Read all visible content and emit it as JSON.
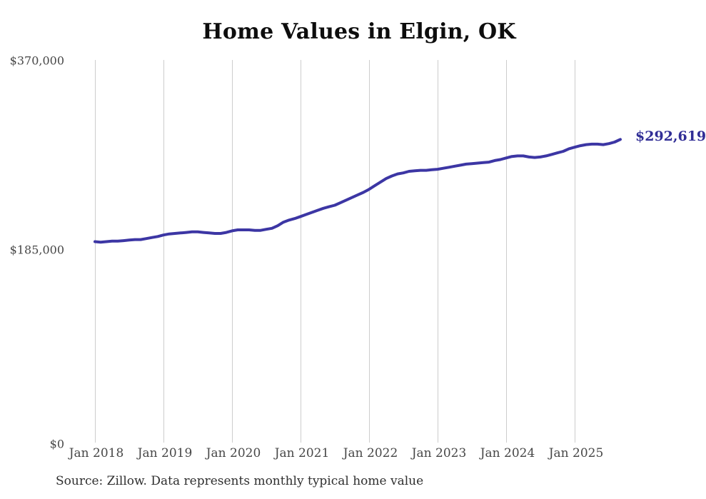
{
  "title": "Home Values in Elgin, OK",
  "source_note": "Source: Zillow. Data represents monthly typical home value",
  "colors": {
    "background": "#ffffff",
    "line": "#3c36a4",
    "end_label": "#312e96",
    "grid": "#cdcdcd",
    "tick_text": "#474747",
    "title_text": "#0d0d0d",
    "source_text": "#2f2f2f"
  },
  "chart_data": {
    "type": "line",
    "title": "Home Values in Elgin, OK",
    "xlabel": "",
    "ylabel": "",
    "ylim": [
      0,
      370000
    ],
    "grid": "vertical-only",
    "legend": "none",
    "y_tick_labels": [
      "$370,000",
      "$185,000",
      "$0"
    ],
    "y_tick_values": [
      370000,
      185000,
      0
    ],
    "x_tick_labels": [
      "Jan 2018",
      "Jan 2019",
      "Jan 2020",
      "Jan 2021",
      "Jan 2022",
      "Jan 2023",
      "Jan 2024",
      "Jan 2025"
    ],
    "end_annotation": "$292,619",
    "series": [
      {
        "name": "Monthly typical home value",
        "x": [
          "2018-01",
          "2018-02",
          "2018-03",
          "2018-04",
          "2018-05",
          "2018-06",
          "2018-07",
          "2018-08",
          "2018-09",
          "2018-10",
          "2018-11",
          "2018-12",
          "2019-01",
          "2019-02",
          "2019-03",
          "2019-04",
          "2019-05",
          "2019-06",
          "2019-07",
          "2019-08",
          "2019-09",
          "2019-10",
          "2019-11",
          "2019-12",
          "2020-01",
          "2020-02",
          "2020-03",
          "2020-04",
          "2020-05",
          "2020-06",
          "2020-07",
          "2020-08",
          "2020-09",
          "2020-10",
          "2020-11",
          "2020-12",
          "2021-01",
          "2021-02",
          "2021-03",
          "2021-04",
          "2021-05",
          "2021-06",
          "2021-07",
          "2021-08",
          "2021-09",
          "2021-10",
          "2021-11",
          "2021-12",
          "2022-01",
          "2022-02",
          "2022-03",
          "2022-04",
          "2022-05",
          "2022-06",
          "2022-07",
          "2022-08",
          "2022-09",
          "2022-10",
          "2022-11",
          "2022-12",
          "2023-01",
          "2023-02",
          "2023-03",
          "2023-04",
          "2023-05",
          "2023-06",
          "2023-07",
          "2023-08",
          "2023-09",
          "2023-10",
          "2023-11",
          "2023-12",
          "2024-01",
          "2024-02",
          "2024-03",
          "2024-04",
          "2024-05",
          "2024-06",
          "2024-07",
          "2024-08",
          "2024-09",
          "2024-10",
          "2024-11",
          "2024-12",
          "2025-01",
          "2025-02",
          "2025-03",
          "2025-04",
          "2025-05",
          "2025-06",
          "2025-07",
          "2025-08",
          "2025-09"
        ],
        "values": [
          193000,
          192500,
          193000,
          193500,
          193500,
          194000,
          194500,
          195000,
          195000,
          196000,
          197000,
          198000,
          199500,
          200500,
          201000,
          201500,
          202000,
          202500,
          202500,
          202000,
          201500,
          201000,
          201000,
          202000,
          203500,
          204500,
          204500,
          204500,
          204000,
          204000,
          205000,
          206000,
          208500,
          212000,
          214000,
          215500,
          217500,
          219500,
          221500,
          223500,
          225500,
          227000,
          228500,
          231000,
          233500,
          236000,
          238500,
          241000,
          244000,
          247500,
          251000,
          254500,
          257000,
          259000,
          260000,
          261500,
          262000,
          262500,
          262500,
          263000,
          263500,
          264500,
          265500,
          266500,
          267500,
          268500,
          269000,
          269500,
          270000,
          270500,
          272000,
          273000,
          274500,
          276000,
          276500,
          276500,
          275500,
          275000,
          275500,
          276500,
          278000,
          279500,
          281000,
          283500,
          285000,
          286500,
          287500,
          288000,
          288000,
          287500,
          288500,
          290000,
          292619
        ]
      }
    ]
  }
}
